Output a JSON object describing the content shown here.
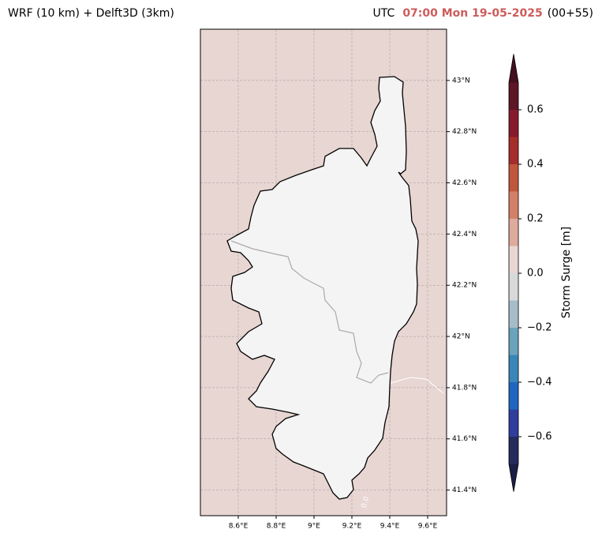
{
  "header": {
    "title": "WRF (10 km) + Delft3D (3km)",
    "zone": "UTC",
    "time": "07:00 Mon 19-05-2025",
    "lead": "(00+55)"
  },
  "map": {
    "xlim": [
      8.4,
      9.7
    ],
    "ylim": [
      41.3,
      43.2
    ],
    "xticks": [
      {
        "value": 8.6,
        "label": "8.6°E"
      },
      {
        "value": 8.8,
        "label": "8.8°E"
      },
      {
        "value": 9,
        "label": "9°E"
      },
      {
        "value": 9.2,
        "label": "9.2°E"
      },
      {
        "value": 9.4,
        "label": "9.4°E"
      },
      {
        "value": 9.6,
        "label": "9.6°E"
      }
    ],
    "yticks": [
      {
        "value": 41.4,
        "label": "41.4°N"
      },
      {
        "value": 41.6,
        "label": "41.6°N"
      },
      {
        "value": 41.8,
        "label": "41.8°N"
      },
      {
        "value": 42,
        "label": "42°N"
      },
      {
        "value": 42.2,
        "label": "42.2°N"
      },
      {
        "value": 42.4,
        "label": "42.4°N"
      },
      {
        "value": 42.6,
        "label": "42.6°N"
      },
      {
        "value": 42.8,
        "label": "42.8°N"
      },
      {
        "value": 43,
        "label": "43°N"
      }
    ],
    "grid": true,
    "contour_label": "0.0"
  },
  "colorbar": {
    "label": "Storm Surge [m]",
    "lim": [
      -0.7,
      0.7
    ],
    "levels": [
      -0.7,
      -0.6,
      -0.5,
      -0.4,
      -0.3,
      -0.2,
      -0.1,
      0,
      0.1,
      0.2,
      0.3,
      0.4,
      0.5,
      0.6,
      0.7
    ],
    "colors": [
      "#252b5c",
      "#2f3e9c",
      "#1f66c0",
      "#3a86b8",
      "#6aa3bc",
      "#a6bcc9",
      "#d8d9db",
      "#e9d6d2",
      "#ddaa9c",
      "#d28068",
      "#c0573c",
      "#a52e2a",
      "#861a2d",
      "#5c1626"
    ],
    "under": "#1c1f45",
    "over": "#431020",
    "ticks": [
      {
        "value": -0.6,
        "label": "−0.6"
      },
      {
        "value": -0.4,
        "label": "−0.4"
      },
      {
        "value": -0.2,
        "label": "−0.2"
      },
      {
        "value": 0,
        "label": "0.0"
      },
      0.2,
      0.4,
      0.6
    ]
  }
}
